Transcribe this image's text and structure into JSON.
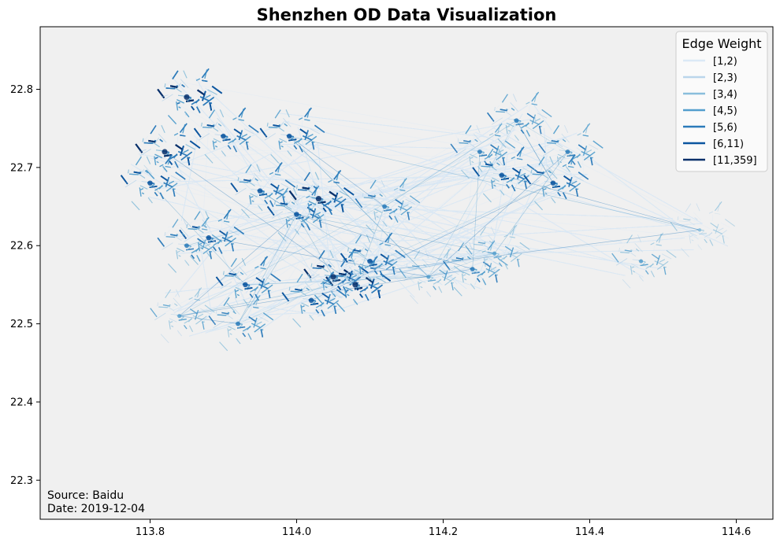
{
  "chart_data": {
    "type": "scatter",
    "title": "Shenzhen OD Data Visualization",
    "xlabel": "",
    "ylabel": "",
    "xlim": [
      113.65,
      114.65
    ],
    "ylim": [
      22.25,
      22.88
    ],
    "x_ticks": [
      "113.8",
      "114.0",
      "114.2",
      "114.4",
      "114.6"
    ],
    "x_tick_values": [
      113.8,
      114.0,
      114.2,
      114.4,
      114.6
    ],
    "y_ticks": [
      "22.3",
      "22.4",
      "22.5",
      "22.6",
      "22.7",
      "22.8"
    ],
    "y_tick_values": [
      22.3,
      22.4,
      22.5,
      22.6,
      22.7,
      22.8
    ],
    "grid": false,
    "background_color": "#f0f0f0",
    "legend": {
      "title": "Edge Weight",
      "placement": "top-right",
      "entries": [
        {
          "label": "[1,2)",
          "color": "#dbe9f6"
        },
        {
          "label": "[2,3)",
          "color": "#bad6eb"
        },
        {
          "label": "[3,4)",
          "color": "#89bedc"
        },
        {
          "label": "[4,5)",
          "color": "#539ecd"
        },
        {
          "label": "[5,6)",
          "color": "#2b7bba"
        },
        {
          "label": "[6,11)",
          "color": "#0b559f"
        },
        {
          "label": "[11,359]",
          "color": "#08306b"
        }
      ]
    },
    "clusters": [
      {
        "x": 113.82,
        "y": 22.72,
        "weight": 6
      },
      {
        "x": 113.8,
        "y": 22.68,
        "weight": 5
      },
      {
        "x": 113.85,
        "y": 22.79,
        "weight": 6
      },
      {
        "x": 113.9,
        "y": 22.74,
        "weight": 5
      },
      {
        "x": 113.95,
        "y": 22.67,
        "weight": 5
      },
      {
        "x": 113.88,
        "y": 22.61,
        "weight": 5
      },
      {
        "x": 113.85,
        "y": 22.6,
        "weight": 4
      },
      {
        "x": 113.93,
        "y": 22.55,
        "weight": 5
      },
      {
        "x": 113.92,
        "y": 22.5,
        "weight": 4
      },
      {
        "x": 114.0,
        "y": 22.64,
        "weight": 5
      },
      {
        "x": 114.03,
        "y": 22.66,
        "weight": 6
      },
      {
        "x": 114.05,
        "y": 22.56,
        "weight": 6
      },
      {
        "x": 114.08,
        "y": 22.55,
        "weight": 6
      },
      {
        "x": 114.1,
        "y": 22.58,
        "weight": 5
      },
      {
        "x": 114.02,
        "y": 22.53,
        "weight": 5
      },
      {
        "x": 113.99,
        "y": 22.74,
        "weight": 5
      },
      {
        "x": 114.12,
        "y": 22.65,
        "weight": 4
      },
      {
        "x": 114.25,
        "y": 22.72,
        "weight": 4
      },
      {
        "x": 114.3,
        "y": 22.76,
        "weight": 4
      },
      {
        "x": 114.28,
        "y": 22.69,
        "weight": 5
      },
      {
        "x": 114.37,
        "y": 22.72,
        "weight": 4
      },
      {
        "x": 114.35,
        "y": 22.68,
        "weight": 5
      },
      {
        "x": 114.24,
        "y": 22.57,
        "weight": 4
      },
      {
        "x": 114.27,
        "y": 22.59,
        "weight": 3
      },
      {
        "x": 114.47,
        "y": 22.58,
        "weight": 3
      },
      {
        "x": 114.55,
        "y": 22.62,
        "weight": 2
      },
      {
        "x": 114.18,
        "y": 22.56,
        "weight": 3
      },
      {
        "x": 113.84,
        "y": 22.51,
        "weight": 3
      }
    ]
  },
  "annotations": {
    "source": "Source: Baidu",
    "date": "Date: 2019-12-04"
  }
}
